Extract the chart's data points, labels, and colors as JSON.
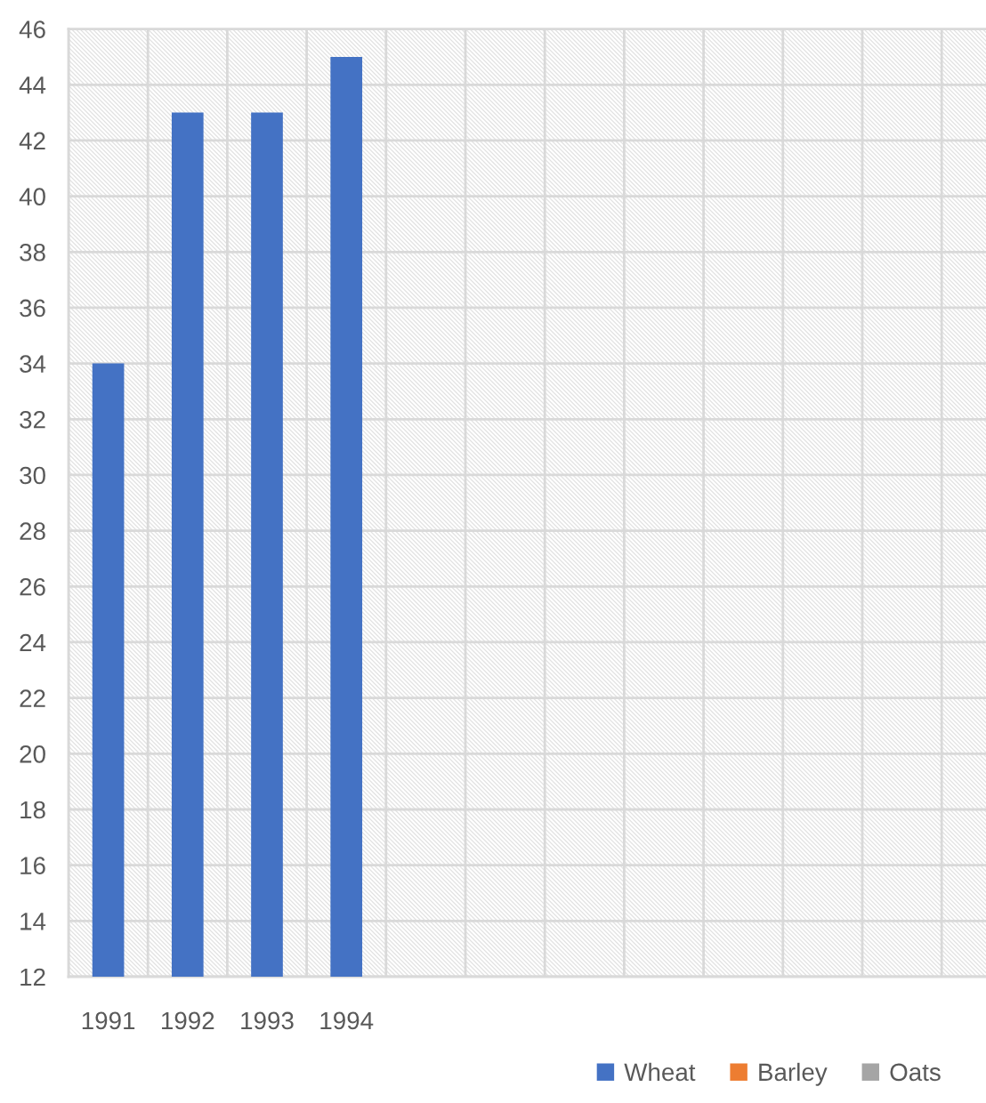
{
  "chart_data": {
    "type": "bar",
    "categories": [
      "1991",
      "1992",
      "1993",
      "1994",
      null,
      null,
      null,
      null,
      null,
      null,
      null,
      null
    ],
    "series": [
      {
        "name": "Wheat",
        "color": "#4472c4",
        "values": [
          34,
          43,
          43,
          45,
          null,
          null,
          null,
          null,
          null,
          null,
          null,
          null
        ]
      },
      {
        "name": "Barley",
        "color": "#ed7d31",
        "values": [
          null,
          null,
          null,
          null,
          null,
          null,
          null,
          null,
          null,
          null,
          null,
          null
        ]
      },
      {
        "name": "Oats",
        "color": "#a5a5a5",
        "values": [
          null,
          null,
          null,
          null,
          null,
          null,
          null,
          null,
          null,
          null,
          null,
          null
        ]
      }
    ],
    "ylim": [
      12,
      46
    ],
    "yticks": [
      12,
      14,
      16,
      18,
      20,
      22,
      24,
      26,
      28,
      30,
      32,
      34,
      36,
      38,
      40,
      42,
      44,
      46
    ],
    "grid": true,
    "legend": "bottom"
  }
}
